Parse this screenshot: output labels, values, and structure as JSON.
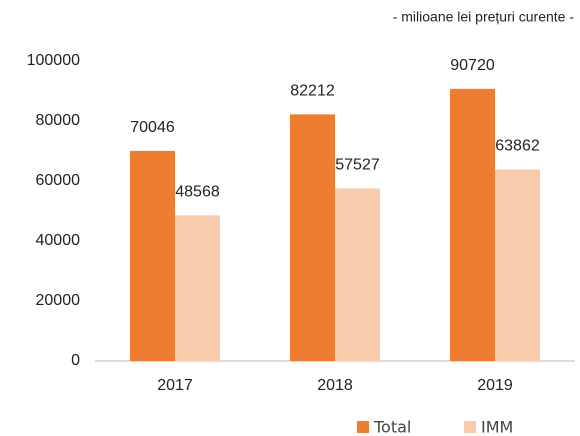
{
  "chart_data": {
    "type": "bar",
    "subtitle": "- milioane lei prețuri curente -",
    "categories": [
      "2017",
      "2018",
      "2019"
    ],
    "series": [
      {
        "name": "Total",
        "color": "#ED7D31",
        "values": [
          70046,
          82212,
          90720
        ]
      },
      {
        "name": "IMM",
        "color": "#F8CBAD",
        "values": [
          48568,
          57527,
          63862
        ]
      }
    ],
    "ylim": [
      0,
      100000
    ],
    "yticks": [
      0,
      20000,
      40000,
      60000,
      80000,
      100000
    ],
    "grid": false,
    "legend": "bottom-right"
  }
}
